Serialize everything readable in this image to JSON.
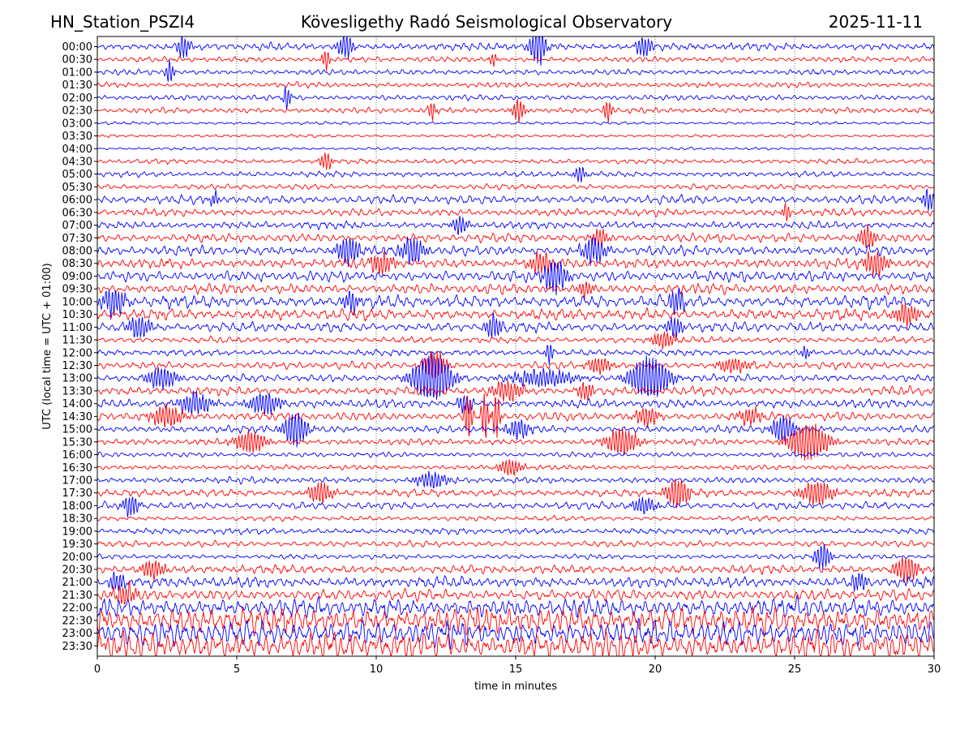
{
  "header": {
    "station": "HN_Station_PSZI4",
    "observatory": "Kövesligethy Radó Seismological Observatory",
    "date": "2025-11-11"
  },
  "chart_data": {
    "type": "line",
    "title": "Kövesligethy Radó Seismological Observatory",
    "xlabel": "time in minutes",
    "ylabel": "UTC (local time = UTC + 01:00)",
    "xlim": [
      0,
      30
    ],
    "xticks": [
      0,
      5,
      10,
      15,
      20,
      25,
      30
    ],
    "x_gridlines": [
      5,
      10,
      15,
      20,
      25
    ],
    "grid": "vertical dotted",
    "trace_colors": [
      "#0000ff",
      "#ff0000"
    ],
    "rows": [
      {
        "label": "00:00",
        "amp": 0.3,
        "events": [
          {
            "t": 3.1,
            "a": 0.9,
            "d": 0.15
          },
          {
            "t": 8.9,
            "a": 0.9,
            "d": 0.2
          },
          {
            "t": 15.8,
            "a": 1.5,
            "d": 0.2
          },
          {
            "t": 19.6,
            "a": 0.8,
            "d": 0.2
          }
        ]
      },
      {
        "label": "00:30",
        "amp": 0.22,
        "events": [
          {
            "t": 8.2,
            "a": 0.8,
            "d": 0.1
          },
          {
            "t": 14.2,
            "a": 0.5,
            "d": 0.1
          }
        ]
      },
      {
        "label": "01:00",
        "amp": 0.22,
        "events": [
          {
            "t": 2.6,
            "a": 0.9,
            "d": 0.1
          }
        ]
      },
      {
        "label": "01:30",
        "amp": 0.22,
        "events": []
      },
      {
        "label": "02:00",
        "amp": 0.22,
        "events": [
          {
            "t": 6.8,
            "a": 0.9,
            "d": 0.1
          }
        ]
      },
      {
        "label": "02:30",
        "amp": 0.22,
        "events": [
          {
            "t": 12.0,
            "a": 0.7,
            "d": 0.1
          },
          {
            "t": 15.1,
            "a": 0.9,
            "d": 0.15
          },
          {
            "t": 18.3,
            "a": 0.9,
            "d": 0.1
          }
        ]
      },
      {
        "label": "03:00",
        "amp": 0.12,
        "events": []
      },
      {
        "label": "03:30",
        "amp": 0.12,
        "events": []
      },
      {
        "label": "04:00",
        "amp": 0.12,
        "events": []
      },
      {
        "label": "04:30",
        "amp": 0.2,
        "events": [
          {
            "t": 8.2,
            "a": 0.7,
            "d": 0.15
          }
        ]
      },
      {
        "label": "05:00",
        "amp": 0.22,
        "events": [
          {
            "t": 17.3,
            "a": 0.6,
            "d": 0.15
          }
        ]
      },
      {
        "label": "05:30",
        "amp": 0.22,
        "events": []
      },
      {
        "label": "06:00",
        "amp": 0.35,
        "events": [
          {
            "t": 4.2,
            "a": 0.6,
            "d": 0.1
          },
          {
            "t": 29.8,
            "a": 0.8,
            "d": 0.15
          }
        ]
      },
      {
        "label": "06:30",
        "amp": 0.3,
        "events": [
          {
            "t": 24.7,
            "a": 0.7,
            "d": 0.1
          }
        ]
      },
      {
        "label": "07:00",
        "amp": 0.3,
        "events": [
          {
            "t": 13.0,
            "a": 0.7,
            "d": 0.2
          }
        ]
      },
      {
        "label": "07:30",
        "amp": 0.35,
        "events": [
          {
            "t": 18.0,
            "a": 0.7,
            "d": 0.2
          },
          {
            "t": 27.6,
            "a": 0.9,
            "d": 0.2
          }
        ]
      },
      {
        "label": "08:00",
        "amp": 0.4,
        "events": [
          {
            "t": 9.0,
            "a": 1.0,
            "d": 0.3
          },
          {
            "t": 11.3,
            "a": 1.0,
            "d": 0.3
          },
          {
            "t": 17.8,
            "a": 1.0,
            "d": 0.3
          }
        ]
      },
      {
        "label": "08:30",
        "amp": 0.4,
        "events": [
          {
            "t": 10.2,
            "a": 0.8,
            "d": 0.3
          },
          {
            "t": 15.9,
            "a": 0.8,
            "d": 0.3
          },
          {
            "t": 27.9,
            "a": 0.9,
            "d": 0.3
          }
        ]
      },
      {
        "label": "09:00",
        "amp": 0.45,
        "events": [
          {
            "t": 16.4,
            "a": 1.3,
            "d": 0.3
          }
        ]
      },
      {
        "label": "09:30",
        "amp": 0.4,
        "events": [
          {
            "t": 17.5,
            "a": 0.6,
            "d": 0.2
          }
        ]
      },
      {
        "label": "10:00",
        "amp": 0.5,
        "events": [
          {
            "t": 0.6,
            "a": 1.0,
            "d": 0.3
          },
          {
            "t": 9.1,
            "a": 0.8,
            "d": 0.2
          },
          {
            "t": 20.8,
            "a": 0.9,
            "d": 0.2
          }
        ]
      },
      {
        "label": "10:30",
        "amp": 0.45,
        "events": [
          {
            "t": 29.0,
            "a": 0.8,
            "d": 0.3
          }
        ]
      },
      {
        "label": "11:00",
        "amp": 0.4,
        "events": [
          {
            "t": 1.5,
            "a": 0.8,
            "d": 0.3
          },
          {
            "t": 14.2,
            "a": 0.9,
            "d": 0.2
          },
          {
            "t": 20.7,
            "a": 0.8,
            "d": 0.2
          }
        ]
      },
      {
        "label": "11:30",
        "amp": 0.25,
        "events": [
          {
            "t": 20.3,
            "a": 0.6,
            "d": 0.3
          }
        ]
      },
      {
        "label": "12:00",
        "amp": 0.25,
        "events": [
          {
            "t": 16.2,
            "a": 0.8,
            "d": 0.1
          },
          {
            "t": 25.4,
            "a": 0.5,
            "d": 0.1
          }
        ]
      },
      {
        "label": "12:30",
        "amp": 0.3,
        "events": [
          {
            "t": 12.1,
            "a": 1.1,
            "d": 0.3
          },
          {
            "t": 18.0,
            "a": 0.6,
            "d": 0.3
          },
          {
            "t": 22.8,
            "a": 0.5,
            "d": 0.4
          }
        ]
      },
      {
        "label": "13:00",
        "amp": 0.3,
        "events": [
          {
            "t": 2.3,
            "a": 0.8,
            "d": 0.4
          },
          {
            "t": 12.0,
            "a": 1.8,
            "d": 0.5
          },
          {
            "t": 19.8,
            "a": 1.6,
            "d": 0.5
          },
          {
            "t": 16.0,
            "a": 0.6,
            "d": 0.8
          }
        ]
      },
      {
        "label": "13:30",
        "amp": 0.35,
        "events": [
          {
            "t": 14.7,
            "a": 0.7,
            "d": 0.4
          },
          {
            "t": 17.5,
            "a": 0.7,
            "d": 0.2
          }
        ]
      },
      {
        "label": "14:00",
        "amp": 0.35,
        "events": [
          {
            "t": 3.5,
            "a": 0.8,
            "d": 0.4
          },
          {
            "t": 6.0,
            "a": 0.8,
            "d": 0.4
          },
          {
            "t": 13.2,
            "a": 0.7,
            "d": 0.2
          }
        ]
      },
      {
        "label": "14:30",
        "amp": 0.35,
        "events": [
          {
            "t": 2.5,
            "a": 0.8,
            "d": 0.4
          },
          {
            "t": 13.3,
            "a": 1.8,
            "d": 0.1
          },
          {
            "t": 13.9,
            "a": 1.8,
            "d": 0.1
          },
          {
            "t": 14.3,
            "a": 1.8,
            "d": 0.1
          },
          {
            "t": 19.7,
            "a": 0.7,
            "d": 0.3
          },
          {
            "t": 23.4,
            "a": 0.6,
            "d": 0.3
          }
        ]
      },
      {
        "label": "15:00",
        "amp": 0.3,
        "events": [
          {
            "t": 7.1,
            "a": 1.3,
            "d": 0.3
          },
          {
            "t": 15.1,
            "a": 0.7,
            "d": 0.3
          },
          {
            "t": 24.6,
            "a": 1.0,
            "d": 0.3
          }
        ]
      },
      {
        "label": "15:30",
        "amp": 0.25,
        "events": [
          {
            "t": 5.5,
            "a": 0.8,
            "d": 0.4
          },
          {
            "t": 18.8,
            "a": 1.0,
            "d": 0.4
          },
          {
            "t": 25.5,
            "a": 1.4,
            "d": 0.5
          }
        ]
      },
      {
        "label": "16:00",
        "amp": 0.2,
        "events": []
      },
      {
        "label": "16:30",
        "amp": 0.2,
        "events": [
          {
            "t": 14.8,
            "a": 0.6,
            "d": 0.3
          }
        ]
      },
      {
        "label": "17:00",
        "amp": 0.25,
        "events": [
          {
            "t": 12.0,
            "a": 0.6,
            "d": 0.4
          }
        ]
      },
      {
        "label": "17:30",
        "amp": 0.3,
        "events": [
          {
            "t": 8.0,
            "a": 0.8,
            "d": 0.3
          },
          {
            "t": 20.8,
            "a": 1.1,
            "d": 0.3
          },
          {
            "t": 25.8,
            "a": 0.9,
            "d": 0.4
          }
        ]
      },
      {
        "label": "18:00",
        "amp": 0.3,
        "events": [
          {
            "t": 1.2,
            "a": 0.8,
            "d": 0.2
          },
          {
            "t": 19.6,
            "a": 0.6,
            "d": 0.3
          }
        ]
      },
      {
        "label": "18:30",
        "amp": 0.2,
        "events": []
      },
      {
        "label": "19:00",
        "amp": 0.25,
        "events": []
      },
      {
        "label": "19:30",
        "amp": 0.25,
        "events": []
      },
      {
        "label": "20:00",
        "amp": 0.2,
        "events": [
          {
            "t": 26.0,
            "a": 1.0,
            "d": 0.2
          }
        ]
      },
      {
        "label": "20:30",
        "amp": 0.35,
        "events": [
          {
            "t": 2.0,
            "a": 0.7,
            "d": 0.3
          },
          {
            "t": 29.0,
            "a": 1.0,
            "d": 0.3
          }
        ]
      },
      {
        "label": "21:00",
        "amp": 0.45,
        "events": [
          {
            "t": 0.7,
            "a": 0.7,
            "d": 0.2
          },
          {
            "t": 27.3,
            "a": 0.7,
            "d": 0.2
          }
        ]
      },
      {
        "label": "21:30",
        "amp": 0.45,
        "events": [
          {
            "t": 1.0,
            "a": 0.7,
            "d": 0.3
          }
        ]
      },
      {
        "label": "22:00",
        "amp": 0.75,
        "events": []
      },
      {
        "label": "22:30",
        "amp": 1.05,
        "events": []
      },
      {
        "label": "23:00",
        "amp": 1.0,
        "events": []
      },
      {
        "label": "23:30",
        "amp": 1.1,
        "events": []
      }
    ]
  }
}
